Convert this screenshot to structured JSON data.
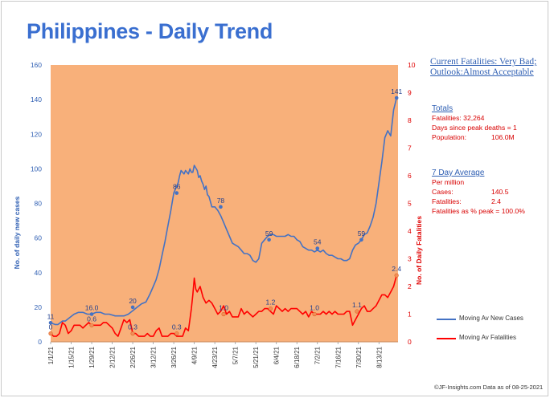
{
  "title": "Philippines - Daily Trend",
  "chart_data": {
    "type": "line",
    "title": "Philippines - Daily Trend",
    "ylabel": "No. of daily new cases",
    "y2label": "No. of Daily Fatalities",
    "ylim": [
      0,
      160
    ],
    "y2lim": [
      0,
      10
    ],
    "yticks": [
      0,
      20,
      40,
      60,
      80,
      100,
      120,
      140,
      160
    ],
    "y2ticks": [
      0,
      1,
      2,
      3,
      4,
      5,
      6,
      7,
      8,
      9,
      10
    ],
    "xlim": [
      0,
      237
    ],
    "x_tick_labels": [
      "1/1/21",
      "1/15/21",
      "1/29/21",
      "2/12/21",
      "2/26/21",
      "3/12/21",
      "3/26/21",
      "4/9/21",
      "4/23/21",
      "5/7/21",
      "5/21/21",
      "6/4/21",
      "6/18/21",
      "7/2/21",
      "7/16/21",
      "7/30/21",
      "8/13/21"
    ],
    "x_tick_days": [
      0,
      14,
      28,
      42,
      56,
      70,
      84,
      98,
      112,
      126,
      140,
      154,
      168,
      182,
      196,
      210,
      224
    ],
    "series": [
      {
        "name": "Moving Av New Cases",
        "axis": "left",
        "color": "#4472c4",
        "x": [
          0,
          3,
          5,
          8,
          10,
          13,
          16,
          19,
          22,
          25,
          28,
          31,
          34,
          37,
          40,
          44,
          47,
          50,
          53,
          56,
          59,
          62,
          65,
          68,
          70,
          72,
          74,
          76,
          78,
          80,
          82,
          84,
          86,
          87,
          88,
          89,
          90,
          91,
          92,
          94,
          95,
          96,
          97,
          98,
          100,
          101,
          102,
          103,
          104,
          105,
          106,
          107,
          108,
          110,
          112,
          114,
          116,
          118,
          120,
          122,
          124,
          126,
          128,
          130,
          132,
          134,
          136,
          138,
          140,
          142,
          144,
          146,
          148,
          150,
          152,
          154,
          156,
          158,
          160,
          162,
          164,
          166,
          168,
          170,
          172,
          174,
          176,
          178,
          180,
          182,
          184,
          186,
          188,
          190,
          192,
          194,
          196,
          198,
          200,
          202,
          204,
          206,
          208,
          210,
          212,
          214,
          216,
          218,
          220,
          222,
          224,
          226,
          228,
          230,
          232,
          234,
          236
        ],
        "values": [
          11,
          10,
          10,
          12,
          12,
          14,
          16,
          17,
          17,
          16,
          16,
          17,
          17,
          16,
          16,
          15,
          15,
          15,
          16,
          18,
          20,
          22,
          23,
          28,
          32,
          36,
          42,
          50,
          58,
          67,
          76,
          86,
          90,
          92,
          96,
          99,
          98,
          97,
          99,
          97,
          100,
          98,
          98,
          102,
          99,
          95,
          96,
          93,
          91,
          88,
          90,
          85,
          84,
          78,
          78,
          76,
          73,
          69,
          65,
          61,
          57,
          56,
          55,
          53,
          51,
          51,
          50,
          47,
          46,
          48,
          57,
          59,
          61,
          62,
          62,
          61,
          61,
          61,
          61,
          62,
          61,
          61,
          59,
          58,
          55,
          54,
          53,
          53,
          52,
          53,
          52,
          53,
          51,
          50,
          50,
          49,
          48,
          48,
          47,
          47,
          48,
          53,
          56,
          57,
          59,
          62,
          63,
          67,
          72,
          80,
          92,
          104,
          118,
          122,
          119,
          134,
          141
        ]
      },
      {
        "name": "Moving Av Fatalities",
        "axis": "right",
        "color": "#ff0000",
        "x": [
          0,
          2,
          4,
          6,
          8,
          10,
          12,
          14,
          16,
          18,
          20,
          22,
          24,
          26,
          28,
          30,
          32,
          34,
          36,
          38,
          40,
          42,
          44,
          46,
          48,
          50,
          52,
          54,
          56,
          58,
          60,
          62,
          64,
          66,
          68,
          70,
          72,
          74,
          76,
          78,
          80,
          82,
          84,
          86,
          88,
          90,
          92,
          94,
          96,
          97,
          98,
          99,
          100,
          102,
          104,
          106,
          108,
          110,
          112,
          114,
          116,
          118,
          120,
          122,
          124,
          126,
          128,
          130,
          132,
          134,
          136,
          138,
          140,
          142,
          144,
          146,
          148,
          150,
          152,
          154,
          156,
          158,
          160,
          162,
          164,
          166,
          168,
          170,
          172,
          174,
          176,
          178,
          180,
          182,
          184,
          186,
          188,
          190,
          192,
          194,
          196,
          198,
          200,
          202,
          204,
          206,
          208,
          210,
          212,
          214,
          216,
          218,
          220,
          222,
          224,
          226,
          228,
          230,
          232,
          234,
          236
        ],
        "values": [
          0.3,
          0.2,
          0.2,
          0.3,
          0.7,
          0.6,
          0.3,
          0.4,
          0.6,
          0.6,
          0.6,
          0.5,
          0.6,
          0.7,
          0.6,
          0.6,
          0.6,
          0.6,
          0.7,
          0.7,
          0.6,
          0.5,
          0.3,
          0.2,
          0.5,
          0.8,
          0.7,
          0.8,
          0.3,
          0.3,
          0.2,
          0.2,
          0.2,
          0.3,
          0.2,
          0.2,
          0.4,
          0.5,
          0.2,
          0.2,
          0.2,
          0.3,
          0.3,
          0.2,
          0.2,
          0.2,
          0.5,
          0.4,
          1.2,
          1.7,
          2.3,
          1.9,
          1.8,
          2.0,
          1.6,
          1.4,
          1.5,
          1.4,
          1.2,
          1.0,
          1.1,
          1.3,
          1.0,
          1.1,
          0.9,
          0.9,
          0.9,
          1.2,
          1.0,
          1.1,
          1.0,
          0.9,
          1.0,
          1.1,
          1.1,
          1.2,
          1.2,
          1.1,
          1.0,
          1.3,
          1.2,
          1.1,
          1.2,
          1.1,
          1.2,
          1.2,
          1.2,
          1.1,
          1.0,
          1.1,
          0.9,
          1.1,
          1.0,
          1.0,
          1.0,
          1.1,
          1.0,
          1.1,
          1.0,
          1.1,
          1.0,
          1.0,
          1.0,
          1.1,
          1.1,
          0.6,
          0.8,
          1.0,
          1.2,
          1.3,
          1.1,
          1.1,
          1.2,
          1.3,
          1.5,
          1.7,
          1.7,
          1.6,
          1.8,
          2.0,
          2.4
        ]
      }
    ],
    "annotations_cases": [
      {
        "x": 0,
        "y": 11,
        "label": "11"
      },
      {
        "x": 28,
        "y": 16,
        "label": "16.0"
      },
      {
        "x": 56,
        "y": 20,
        "label": "20"
      },
      {
        "x": 86,
        "y": 86,
        "label": "86"
      },
      {
        "x": 116,
        "y": 78,
        "label": "78"
      },
      {
        "x": 149,
        "y": 59,
        "label": "59"
      },
      {
        "x": 182,
        "y": 54,
        "label": "54"
      },
      {
        "x": 212,
        "y": 59,
        "label": "59"
      },
      {
        "x": 236,
        "y": 141,
        "label": "141"
      }
    ],
    "annotations_fatalities": [
      {
        "x": 0,
        "y": 0.3,
        "label": "0"
      },
      {
        "x": 28,
        "y": 0.6,
        "label": "0.6"
      },
      {
        "x": 56,
        "y": 0.3,
        "label": "0.3"
      },
      {
        "x": 86,
        "y": 0.3,
        "label": "0.3"
      },
      {
        "x": 118,
        "y": 1.0,
        "label": "1.0"
      },
      {
        "x": 150,
        "y": 1.2,
        "label": "1.2"
      },
      {
        "x": 180,
        "y": 1.0,
        "label": "1.0"
      },
      {
        "x": 209,
        "y": 1.1,
        "label": "1.1"
      },
      {
        "x": 236,
        "y": 2.4,
        "label": "2.4"
      }
    ]
  },
  "sidebar": {
    "headline": "Current Fatalities: Very Bad; Outlook:Almost Acceptable",
    "totals_label": "Totals",
    "fatalities": "Fatalities: 32,264",
    "days_since_peak": "Days since peak deaths = 1",
    "population_label": "Population:",
    "population_value": "106.0M",
    "avg_label": "7 Day Average",
    "per_million": "Per million",
    "cases_label": "Cases:",
    "cases_value": "140.5",
    "fatal_label": "Fatalities:",
    "fatal_value": "2.4",
    "pct_peak": "Fatalities as % peak = 100.0%"
  },
  "legend": {
    "cases": "Moving Av New Cases",
    "fatalities": "Moving Av Fatalities",
    "cases_color": "#4472c4",
    "fatalities_color": "#ff0000"
  },
  "footer": "©JF-Insights.com  Data as of 08-25-2021"
}
